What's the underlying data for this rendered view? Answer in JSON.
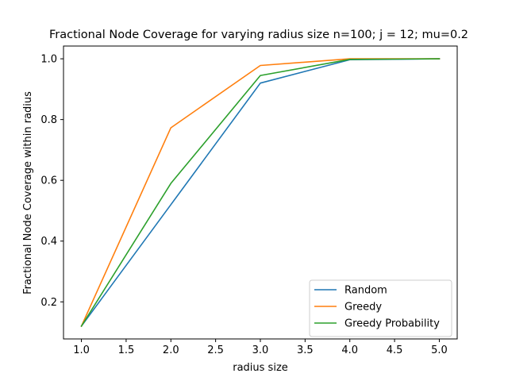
{
  "chart_data": {
    "type": "line",
    "title": "Fractional Node Coverage for varying radius size n=100; j = 12; mu=0.2",
    "xlabel": "radius size",
    "ylabel": "Fractional Node Coverage within radius",
    "x": [
      1.0,
      2.0,
      3.0,
      4.0,
      5.0
    ],
    "xlim": [
      0.8,
      5.2
    ],
    "ylim": [
      0.078,
      1.042
    ],
    "xticks": [
      1.0,
      1.5,
      2.0,
      2.5,
      3.0,
      3.5,
      4.0,
      4.5,
      5.0
    ],
    "yticks": [
      0.2,
      0.4,
      0.6,
      0.8,
      1.0
    ],
    "xtick_labels": [
      "1.0",
      "1.5",
      "2.0",
      "2.5",
      "3.0",
      "3.5",
      "4.0",
      "4.5",
      "5.0"
    ],
    "ytick_labels": [
      "0.2",
      "0.4",
      "0.6",
      "0.8",
      "1.0"
    ],
    "grid": false,
    "legend_position": "lower-right",
    "series": [
      {
        "name": "Random",
        "color": "#1f77b4",
        "values": [
          0.12,
          0.52,
          0.92,
          0.997,
          1.0
        ]
      },
      {
        "name": "Greedy",
        "color": "#ff7f0e",
        "values": [
          0.12,
          0.773,
          0.978,
          1.0,
          1.0
        ]
      },
      {
        "name": "Greedy Probability",
        "color": "#2ca02c",
        "values": [
          0.12,
          0.59,
          0.945,
          0.998,
          1.0
        ]
      }
    ]
  }
}
